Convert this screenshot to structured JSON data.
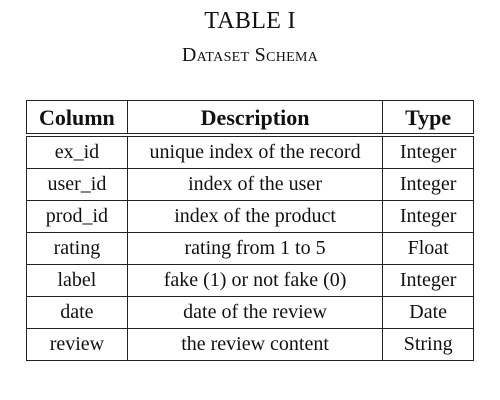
{
  "caption": {
    "title": "TABLE I",
    "subtitle": "Dataset Schema"
  },
  "table": {
    "headers": [
      "Column",
      "Description",
      "Type"
    ],
    "rows": [
      [
        "ex_id",
        "unique index of the record",
        "Integer"
      ],
      [
        "user_id",
        "index of the user",
        "Integer"
      ],
      [
        "prod_id",
        "index of the product",
        "Integer"
      ],
      [
        "rating",
        "rating from 1 to 5",
        "Float"
      ],
      [
        "label",
        "fake (1) or not fake (0)",
        "Integer"
      ],
      [
        "date",
        "date of the review",
        "Date"
      ],
      [
        "review",
        "the review content",
        "String"
      ]
    ]
  }
}
